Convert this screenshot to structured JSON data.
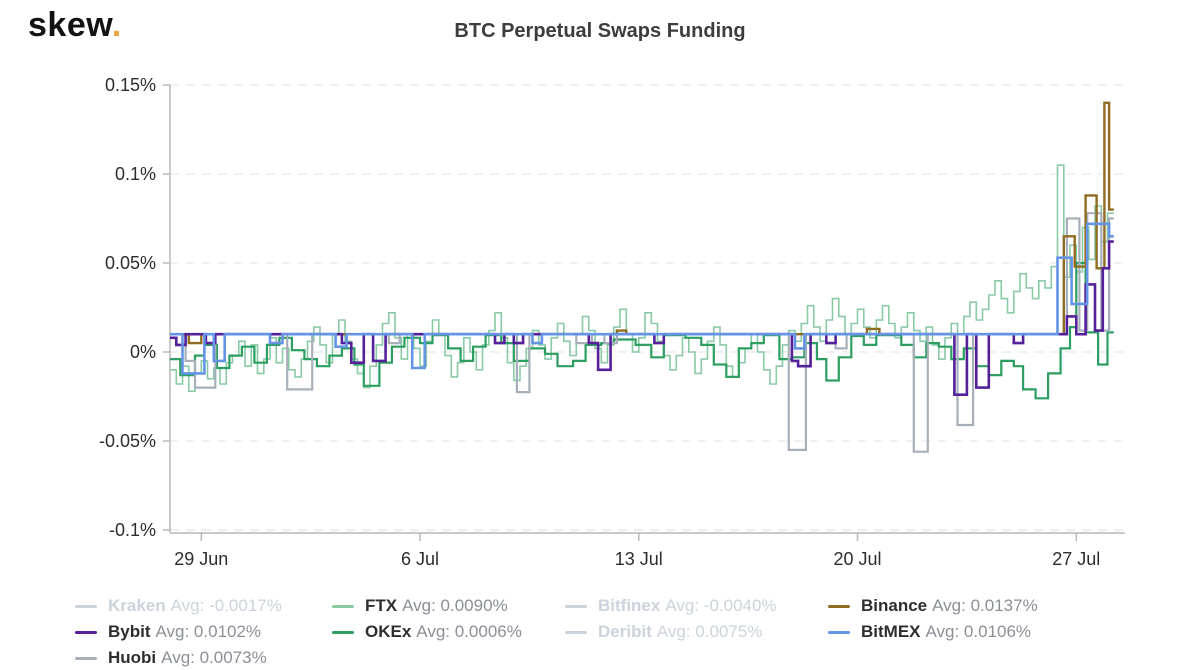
{
  "header": {
    "logo_text": "skew",
    "logo_dot": ".",
    "title": "BTC Perpetual Swaps Funding"
  },
  "colors": {
    "accent_dot": "#efa23b",
    "axis": "#b9b9b9",
    "grid": "#e8e8e8",
    "tick_text": "#2d2d2d",
    "disabled_legend": "#ccd3dc"
  },
  "chart_data": {
    "type": "line",
    "step": true,
    "title": "BTC Perpetual Swaps Funding",
    "grid": "horizontal-dashed",
    "legend_position": "bottom",
    "y_axis": {
      "ticks": [
        "0.15%",
        "0.1%",
        "0.05%",
        "0%",
        "-0.05%",
        "-0.1%"
      ],
      "tick_values": [
        0.15,
        0.1,
        0.05,
        0,
        -0.05,
        -0.1
      ],
      "range": [
        -0.1,
        0.15
      ],
      "unit": "%"
    },
    "x_axis": {
      "ticks": [
        "29 Jun",
        "6 Jul",
        "13 Jul",
        "20 Jul",
        "27 Jul"
      ],
      "tick_days": [
        1,
        8,
        15,
        22,
        29
      ],
      "domain_days": [
        0,
        30.2
      ],
      "day_zero": "28 Jun"
    },
    "hidden_series": [
      "Kraken",
      "Bitfinex",
      "Deribit"
    ],
    "series": [
      {
        "name": "FTX",
        "color": "#8acaa5",
        "width": 1.6,
        "dt": 0.2,
        "values": [
          -0.01,
          -0.018,
          -0.008,
          -0.022,
          -0.012,
          -0.005,
          -0.015,
          -0.009,
          -0.018,
          -0.006,
          -0.002,
          0.006,
          -0.008,
          0.004,
          -0.012,
          -0.004,
          0.008,
          -0.006,
          0.002,
          -0.01,
          -0.014,
          -0.004,
          0.006,
          0.014,
          0.004,
          -0.006,
          0.01,
          0.018,
          0.006,
          -0.004,
          -0.012,
          -0.02,
          -0.008,
          0.004,
          0.016,
          0.022,
          0.008,
          -0.004,
          0.01,
          0.002,
          -0.008,
          0.006,
          0.018,
          0.01,
          -0.002,
          -0.014,
          -0.006,
          0.008,
          0.0,
          -0.01,
          0.004,
          0.012,
          0.022,
          0.008,
          -0.006,
          -0.016,
          -0.008,
          0.002,
          0.012,
          0.004,
          -0.004,
          0.008,
          0.016,
          0.006,
          -0.002,
          0.01,
          0.02,
          0.012,
          0.002,
          -0.006,
          0.004,
          0.014,
          0.024,
          0.01,
          0.0,
          0.008,
          0.022,
          0.016,
          0.006,
          -0.002,
          -0.01,
          -0.002,
          0.008,
          0.0,
          -0.012,
          -0.004,
          0.006,
          0.014,
          0.004,
          -0.008,
          -0.014,
          -0.006,
          0.002,
          0.01,
          0.0,
          -0.01,
          -0.018,
          -0.008,
          0.004,
          0.012,
          0.006,
          0.016,
          0.026,
          0.014,
          0.006,
          0.018,
          0.03,
          0.02,
          0.01,
          0.016,
          0.024,
          0.014,
          0.008,
          0.018,
          0.026,
          0.016,
          0.008,
          0.014,
          0.022,
          0.012,
          0.006,
          0.014,
          0.004,
          -0.004,
          0.008,
          0.016,
          0.01,
          0.02,
          0.028,
          0.018,
          0.024,
          0.032,
          0.04,
          0.03,
          0.022,
          0.034,
          0.044,
          0.036,
          0.03,
          0.04,
          0.036,
          0.048,
          0.105,
          0.042,
          0.06,
          0.045,
          0.07,
          0.052,
          0.082,
          0.062,
          0.078
        ]
      },
      {
        "name": "OKEx",
        "color": "#2d9e62",
        "width": 2.2,
        "points": [
          [
            0,
            -0.004
          ],
          [
            0.33,
            -0.013
          ],
          [
            0.8,
            -0.002
          ],
          [
            1.1,
            0.004
          ],
          [
            1.5,
            -0.009
          ],
          [
            1.9,
            -0.002
          ],
          [
            2.3,
            0.003
          ],
          [
            2.7,
            -0.006
          ],
          [
            3.1,
            0.004
          ],
          [
            3.5,
            0.008
          ],
          [
            3.9,
            0.001
          ],
          [
            4.3,
            -0.004
          ],
          [
            4.7,
            -0.008
          ],
          [
            5.1,
            -0.002
          ],
          [
            5.5,
            0.002
          ],
          [
            5.9,
            -0.007
          ],
          [
            6.2,
            -0.019
          ],
          [
            6.7,
            -0.006
          ],
          [
            7.1,
            0.003
          ],
          [
            7.5,
            0.008
          ],
          [
            8.0,
            0.005
          ],
          [
            8.4,
            0.0095
          ],
          [
            8.9,
            0.002
          ],
          [
            9.3,
            -0.005
          ],
          [
            9.7,
            0.003
          ],
          [
            10.1,
            0.0095
          ],
          [
            10.6,
            0.005
          ],
          [
            11.0,
            -0.005
          ],
          [
            11.5,
            0.002
          ],
          [
            12.0,
            -0.001
          ],
          [
            12.4,
            -0.008
          ],
          [
            12.9,
            -0.005
          ],
          [
            13.3,
            0.004
          ],
          [
            13.8,
            0.005
          ],
          [
            14.2,
            0.007
          ],
          [
            14.9,
            0.004
          ],
          [
            15.4,
            -0.003
          ],
          [
            15.8,
            0.0095
          ],
          [
            16.5,
            0.008
          ],
          [
            17.0,
            0.004
          ],
          [
            17.4,
            -0.007
          ],
          [
            17.8,
            -0.014
          ],
          [
            18.2,
            0.002
          ],
          [
            18.6,
            0.005
          ],
          [
            19.0,
            0.0095
          ],
          [
            19.5,
            -0.004
          ],
          [
            19.9,
            -0.003
          ],
          [
            20.3,
            0.005
          ],
          [
            20.7,
            -0.004
          ],
          [
            21.0,
            -0.016
          ],
          [
            21.4,
            -0.003
          ],
          [
            21.8,
            0.009
          ],
          [
            22.2,
            0.004
          ],
          [
            22.6,
            0.0095
          ],
          [
            23.4,
            0.004
          ],
          [
            23.8,
            -0.003
          ],
          [
            24.2,
            0.005
          ],
          [
            24.6,
            0.003
          ],
          [
            25.0,
            -0.004
          ],
          [
            25.4,
            0.002
          ],
          [
            25.8,
            -0.008
          ],
          [
            26.2,
            -0.013
          ],
          [
            26.6,
            -0.005
          ],
          [
            27.0,
            -0.008
          ],
          [
            27.3,
            -0.021
          ],
          [
            27.7,
            -0.026
          ],
          [
            28.1,
            -0.012
          ],
          [
            28.5,
            0.002
          ],
          [
            28.8,
            0.014
          ],
          [
            29.0,
            0.05
          ],
          [
            29.3,
            0.011
          ],
          [
            29.7,
            -0.007
          ],
          [
            30.0,
            0.011
          ]
        ]
      },
      {
        "name": "Huobi",
        "color": "#a7b0ba",
        "width": 2.2,
        "points": [
          [
            0,
            0.01
          ],
          [
            0.5,
            -0.005
          ],
          [
            0.8,
            -0.02
          ],
          [
            1.45,
            0.01
          ],
          [
            3.75,
            -0.021
          ],
          [
            4.55,
            0.01
          ],
          [
            7.0,
            0.005
          ],
          [
            7.35,
            0.01
          ],
          [
            11.1,
            -0.0225
          ],
          [
            11.5,
            0.01
          ],
          [
            13.0,
            0.005
          ],
          [
            13.5,
            0.01
          ],
          [
            13.9,
            0.005
          ],
          [
            14.3,
            0.01
          ],
          [
            19.8,
            -0.055
          ],
          [
            20.35,
            0.01
          ],
          [
            21.3,
            0.002
          ],
          [
            21.65,
            0.01
          ],
          [
            23.8,
            -0.056
          ],
          [
            24.25,
            0.01
          ],
          [
            25.2,
            -0.041
          ],
          [
            25.7,
            0.01
          ],
          [
            28.7,
            0.075
          ],
          [
            29.1,
            0.012
          ],
          [
            29.35,
            0.078
          ],
          [
            29.8,
            0.012
          ],
          [
            30.05,
            0.075
          ]
        ]
      },
      {
        "name": "Binance",
        "color": "#8f6c22",
        "width": 2.4,
        "points": [
          [
            0,
            0.01
          ],
          [
            0.6,
            0.005
          ],
          [
            1.0,
            0.01
          ],
          [
            14.3,
            0.012
          ],
          [
            14.6,
            0.01
          ],
          [
            22.3,
            0.013
          ],
          [
            22.7,
            0.01
          ],
          [
            28.6,
            0.065
          ],
          [
            28.95,
            0.048
          ],
          [
            29.3,
            0.088
          ],
          [
            29.65,
            0.047
          ],
          [
            29.9,
            0.14
          ],
          [
            30.05,
            0.08
          ]
        ]
      },
      {
        "name": "Bybit",
        "color": "#54219b",
        "width": 2.6,
        "points": [
          [
            0,
            0.008
          ],
          [
            0.2,
            0.004
          ],
          [
            0.5,
            0.01
          ],
          [
            1.15,
            0.005
          ],
          [
            1.45,
            0.01
          ],
          [
            5.5,
            0.005
          ],
          [
            5.8,
            -0.006
          ],
          [
            6.2,
            0.01
          ],
          [
            6.5,
            -0.005
          ],
          [
            6.9,
            0.01
          ],
          [
            10.4,
            0.005
          ],
          [
            10.7,
            0.01
          ],
          [
            11.0,
            0.005
          ],
          [
            11.3,
            0.01
          ],
          [
            13.4,
            0.005
          ],
          [
            13.7,
            -0.01
          ],
          [
            14.1,
            0.01
          ],
          [
            15.5,
            0.005
          ],
          [
            15.8,
            0.01
          ],
          [
            19.9,
            -0.005
          ],
          [
            20.1,
            -0.008
          ],
          [
            20.5,
            0.01
          ],
          [
            21.0,
            0.005
          ],
          [
            21.3,
            0.01
          ],
          [
            25.1,
            -0.024
          ],
          [
            25.5,
            0.01
          ],
          [
            25.8,
            -0.02
          ],
          [
            26.2,
            0.01
          ],
          [
            27.0,
            0.005
          ],
          [
            27.3,
            0.01
          ],
          [
            28.7,
            0.02
          ],
          [
            29.0,
            0.01
          ],
          [
            29.3,
            0.038
          ],
          [
            29.6,
            0.012
          ],
          [
            29.85,
            0.047
          ],
          [
            30.05,
            0.062
          ]
        ]
      },
      {
        "name": "BitMEX",
        "color": "#6594e4",
        "width": 2.6,
        "points": [
          [
            0,
            0.01
          ],
          [
            0.4,
            -0.012
          ],
          [
            1.1,
            0.01
          ],
          [
            1.4,
            -0.005
          ],
          [
            1.75,
            0.01
          ],
          [
            3.2,
            0.005
          ],
          [
            3.6,
            0.01
          ],
          [
            5.3,
            0.003
          ],
          [
            5.65,
            0.01
          ],
          [
            7.75,
            -0.009
          ],
          [
            8.15,
            0.01
          ],
          [
            11.6,
            0.005
          ],
          [
            11.9,
            0.01
          ],
          [
            20.0,
            0.002
          ],
          [
            20.3,
            0.01
          ],
          [
            28.4,
            0.053
          ],
          [
            28.85,
            0.027
          ],
          [
            29.35,
            0.072
          ],
          [
            30.05,
            0.065
          ]
        ]
      }
    ]
  },
  "legend": {
    "columns": [
      [
        {
          "name": "Kraken",
          "avg": "Avg: -0.0017%",
          "color": "#ccd3dc",
          "disabled": true
        },
        {
          "name": "Bybit",
          "avg": "Avg: 0.0102%",
          "color": "#54219b",
          "disabled": false
        },
        {
          "name": "Huobi",
          "avg": "Avg: 0.0073%",
          "color": "#a7b0ba",
          "disabled": false
        }
      ],
      [
        {
          "name": "FTX",
          "avg": "Avg: 0.0090%",
          "color": "#8acaa5",
          "disabled": false
        },
        {
          "name": "OKEx",
          "avg": "Avg: 0.0006%",
          "color": "#2d9e62",
          "disabled": false
        }
      ],
      [
        {
          "name": "Bitfinex",
          "avg": "Avg: -0.0040%",
          "color": "#ccd3dc",
          "disabled": true
        },
        {
          "name": "Deribit",
          "avg": "Avg: 0.0075%",
          "color": "#ccd3dc",
          "disabled": true
        }
      ],
      [
        {
          "name": "Binance",
          "avg": "Avg: 0.0137%",
          "color": "#8f6c22",
          "disabled": false
        },
        {
          "name": "BitMEX",
          "avg": "Avg: 0.0106%",
          "color": "#6594e4",
          "disabled": false
        }
      ]
    ]
  }
}
